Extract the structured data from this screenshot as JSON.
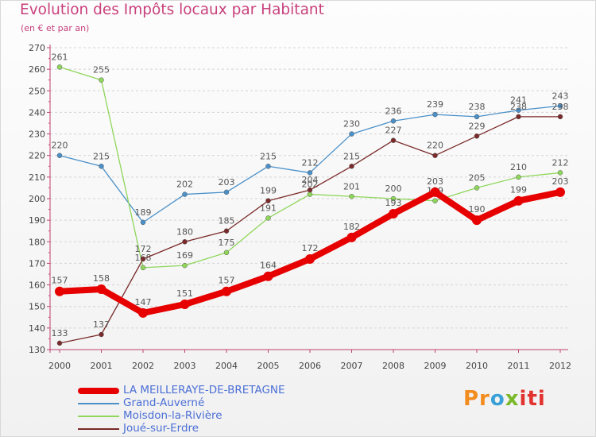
{
  "title": "Evolution des Impôts locaux par Habitant",
  "subtitle": "(en € et par an)",
  "logo": {
    "p": "Pr",
    "o": "o",
    "x": "x",
    "iti": "iti"
  },
  "chart_data": {
    "type": "line",
    "title": "Evolution des Impôts locaux par Habitant",
    "subtitle": "(en € et par an)",
    "x": [
      "2000",
      "2001",
      "2002",
      "2003",
      "2004",
      "2005",
      "2006",
      "2007",
      "2008",
      "2009",
      "2010",
      "2011",
      "2012"
    ],
    "ylim": [
      130,
      270
    ],
    "yticks": [
      130,
      140,
      150,
      160,
      170,
      180,
      190,
      200,
      210,
      220,
      230,
      240,
      250,
      260,
      270
    ],
    "grid": "horizontal-dashed",
    "legend_position": "bottom",
    "series": [
      {
        "name": "Grand-Auverné",
        "color": "#4a90c9",
        "values": [
          220,
          215,
          189,
          202,
          203,
          215,
          212,
          230,
          236,
          239,
          238,
          241,
          243
        ]
      },
      {
        "name": "Moisdon-la-Rivière",
        "color": "#8fd65b",
        "values": [
          261,
          255,
          168,
          169,
          175,
          191,
          202,
          201,
          200,
          199,
          205,
          210,
          212
        ]
      },
      {
        "name": "Joué-sur-Erdre",
        "color": "#7a2a2a",
        "values": [
          133,
          137,
          172,
          180,
          185,
          199,
          204,
          215,
          227,
          220,
          229,
          238,
          238
        ]
      },
      {
        "name": "LA MEILLERAYE-DE-BRETAGNE",
        "color": "#e60000",
        "values": [
          157,
          158,
          147,
          151,
          157,
          164,
          172,
          182,
          193,
          203,
          190,
          199,
          203
        ]
      }
    ]
  },
  "legend": [
    {
      "name": "LA MEILLERAYE-DE-BRETAGNE",
      "color": "#e60000",
      "thick": true
    },
    {
      "name": "Grand-Auverné",
      "color": "#4a90c9",
      "thick": false
    },
    {
      "name": "Moisdon-la-Rivière",
      "color": "#8fd65b",
      "thick": false
    },
    {
      "name": "Joué-sur-Erdre",
      "color": "#7a2a2a",
      "thick": false
    }
  ]
}
